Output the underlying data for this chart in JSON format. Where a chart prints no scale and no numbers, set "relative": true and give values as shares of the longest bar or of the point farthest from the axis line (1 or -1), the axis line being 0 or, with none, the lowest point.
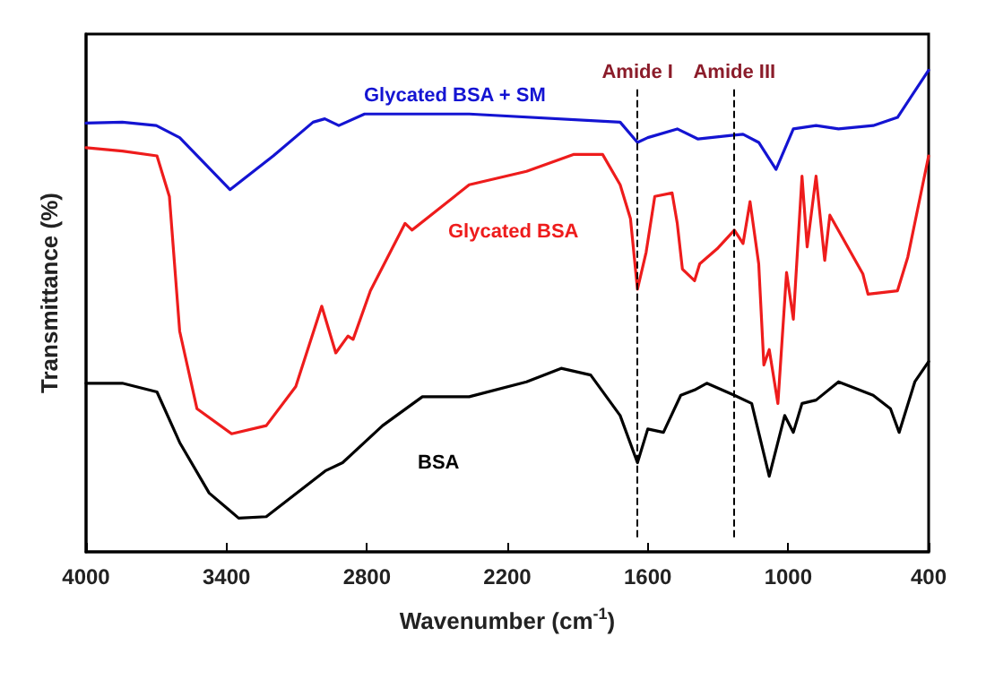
{
  "chart_data": {
    "type": "line",
    "relative": true,
    "xlabel": "Wavenumber (cm$^{-1}$)",
    "ylabel": "Transmittance (%)",
    "xlim": [
      4000,
      400
    ],
    "xticks": [
      4000,
      3400,
      2800,
      2200,
      1600,
      1000,
      400
    ],
    "grid": false,
    "marker": "none",
    "line_style": "solid",
    "series": [
      {
        "name": "Glycated BSA + SM",
        "color": "#1414d2",
        "x": [
          4000,
          3845,
          3700,
          3600,
          3385,
          3200,
          3030,
          2980,
          2920,
          2810,
          2363,
          1718,
          1644,
          1600,
          1474,
          1385,
          1252,
          1193,
          1126,
          1052,
          978,
          881,
          785,
          637,
          533,
          400
        ],
        "values": [
          0.89,
          0.892,
          0.885,
          0.86,
          0.752,
          0.822,
          0.892,
          0.899,
          0.885,
          0.909,
          0.909,
          0.892,
          0.85,
          0.86,
          0.878,
          0.857,
          0.864,
          0.867,
          0.85,
          0.794,
          0.878,
          0.885,
          0.878,
          0.885,
          0.902,
          1
        ]
      },
      {
        "name": "Glycated BSA",
        "color": "#ee1c1c",
        "x": [
          4000,
          3845,
          3697,
          3644,
          3600,
          3526,
          3378,
          3230,
          3104,
          2993,
          2933,
          2881,
          2859,
          2785,
          2637,
          2607,
          2363,
          2118,
          1918,
          1793,
          1718,
          1674,
          1644,
          1607,
          1570,
          1496,
          1474,
          1452,
          1400,
          1378,
          1304,
          1230,
          1193,
          1163,
          1126,
          1104,
          1081,
          1044,
          1007,
          978,
          941,
          919,
          881,
          844,
          822,
          681,
          659,
          533,
          489,
          400
        ],
        "values": [
          0.839,
          0.832,
          0.822,
          0.738,
          0.458,
          0.297,
          0.245,
          0.262,
          0.343,
          0.51,
          0.413,
          0.448,
          0.441,
          0.542,
          0.682,
          0.668,
          0.762,
          0.79,
          0.825,
          0.825,
          0.762,
          0.692,
          0.545,
          0.622,
          0.738,
          0.745,
          0.682,
          0.587,
          0.563,
          0.598,
          0.629,
          0.668,
          0.64,
          0.727,
          0.598,
          0.388,
          0.42,
          0.308,
          0.58,
          0.483,
          0.78,
          0.633,
          0.78,
          0.605,
          0.699,
          0.577,
          0.535,
          0.542,
          0.612,
          0.822
        ]
      },
      {
        "name": "BSA",
        "color": "#000000",
        "x": [
          4000,
          3845,
          3697,
          3600,
          3474,
          3348,
          3230,
          2978,
          2904,
          2733,
          2563,
          2363,
          2118,
          1970,
          1844,
          1718,
          1644,
          1600,
          1533,
          1459,
          1400,
          1348,
          1230,
          1156,
          1081,
          1015,
          978,
          941,
          881,
          785,
          637,
          563,
          526,
          459,
          400
        ],
        "values": [
          0.35,
          0.35,
          0.332,
          0.227,
          0.122,
          0.07,
          0.073,
          0.168,
          0.185,
          0.262,
          0.322,
          0.322,
          0.353,
          0.381,
          0.367,
          0.283,
          0.185,
          0.255,
          0.248,
          0.325,
          0.336,
          0.35,
          0.325,
          0.308,
          0.157,
          0.283,
          0.248,
          0.308,
          0.315,
          0.353,
          0.325,
          0.297,
          0.248,
          0.353,
          0.395
        ]
      }
    ],
    "ref_lines": [
      {
        "axis": "x",
        "value": 1644,
        "label": "Amide I",
        "color": "#000000",
        "line_style": "dashed"
      },
      {
        "axis": "x",
        "value": 1230,
        "label": "Amide III",
        "color": "#000000",
        "line_style": "dashed"
      }
    ]
  }
}
